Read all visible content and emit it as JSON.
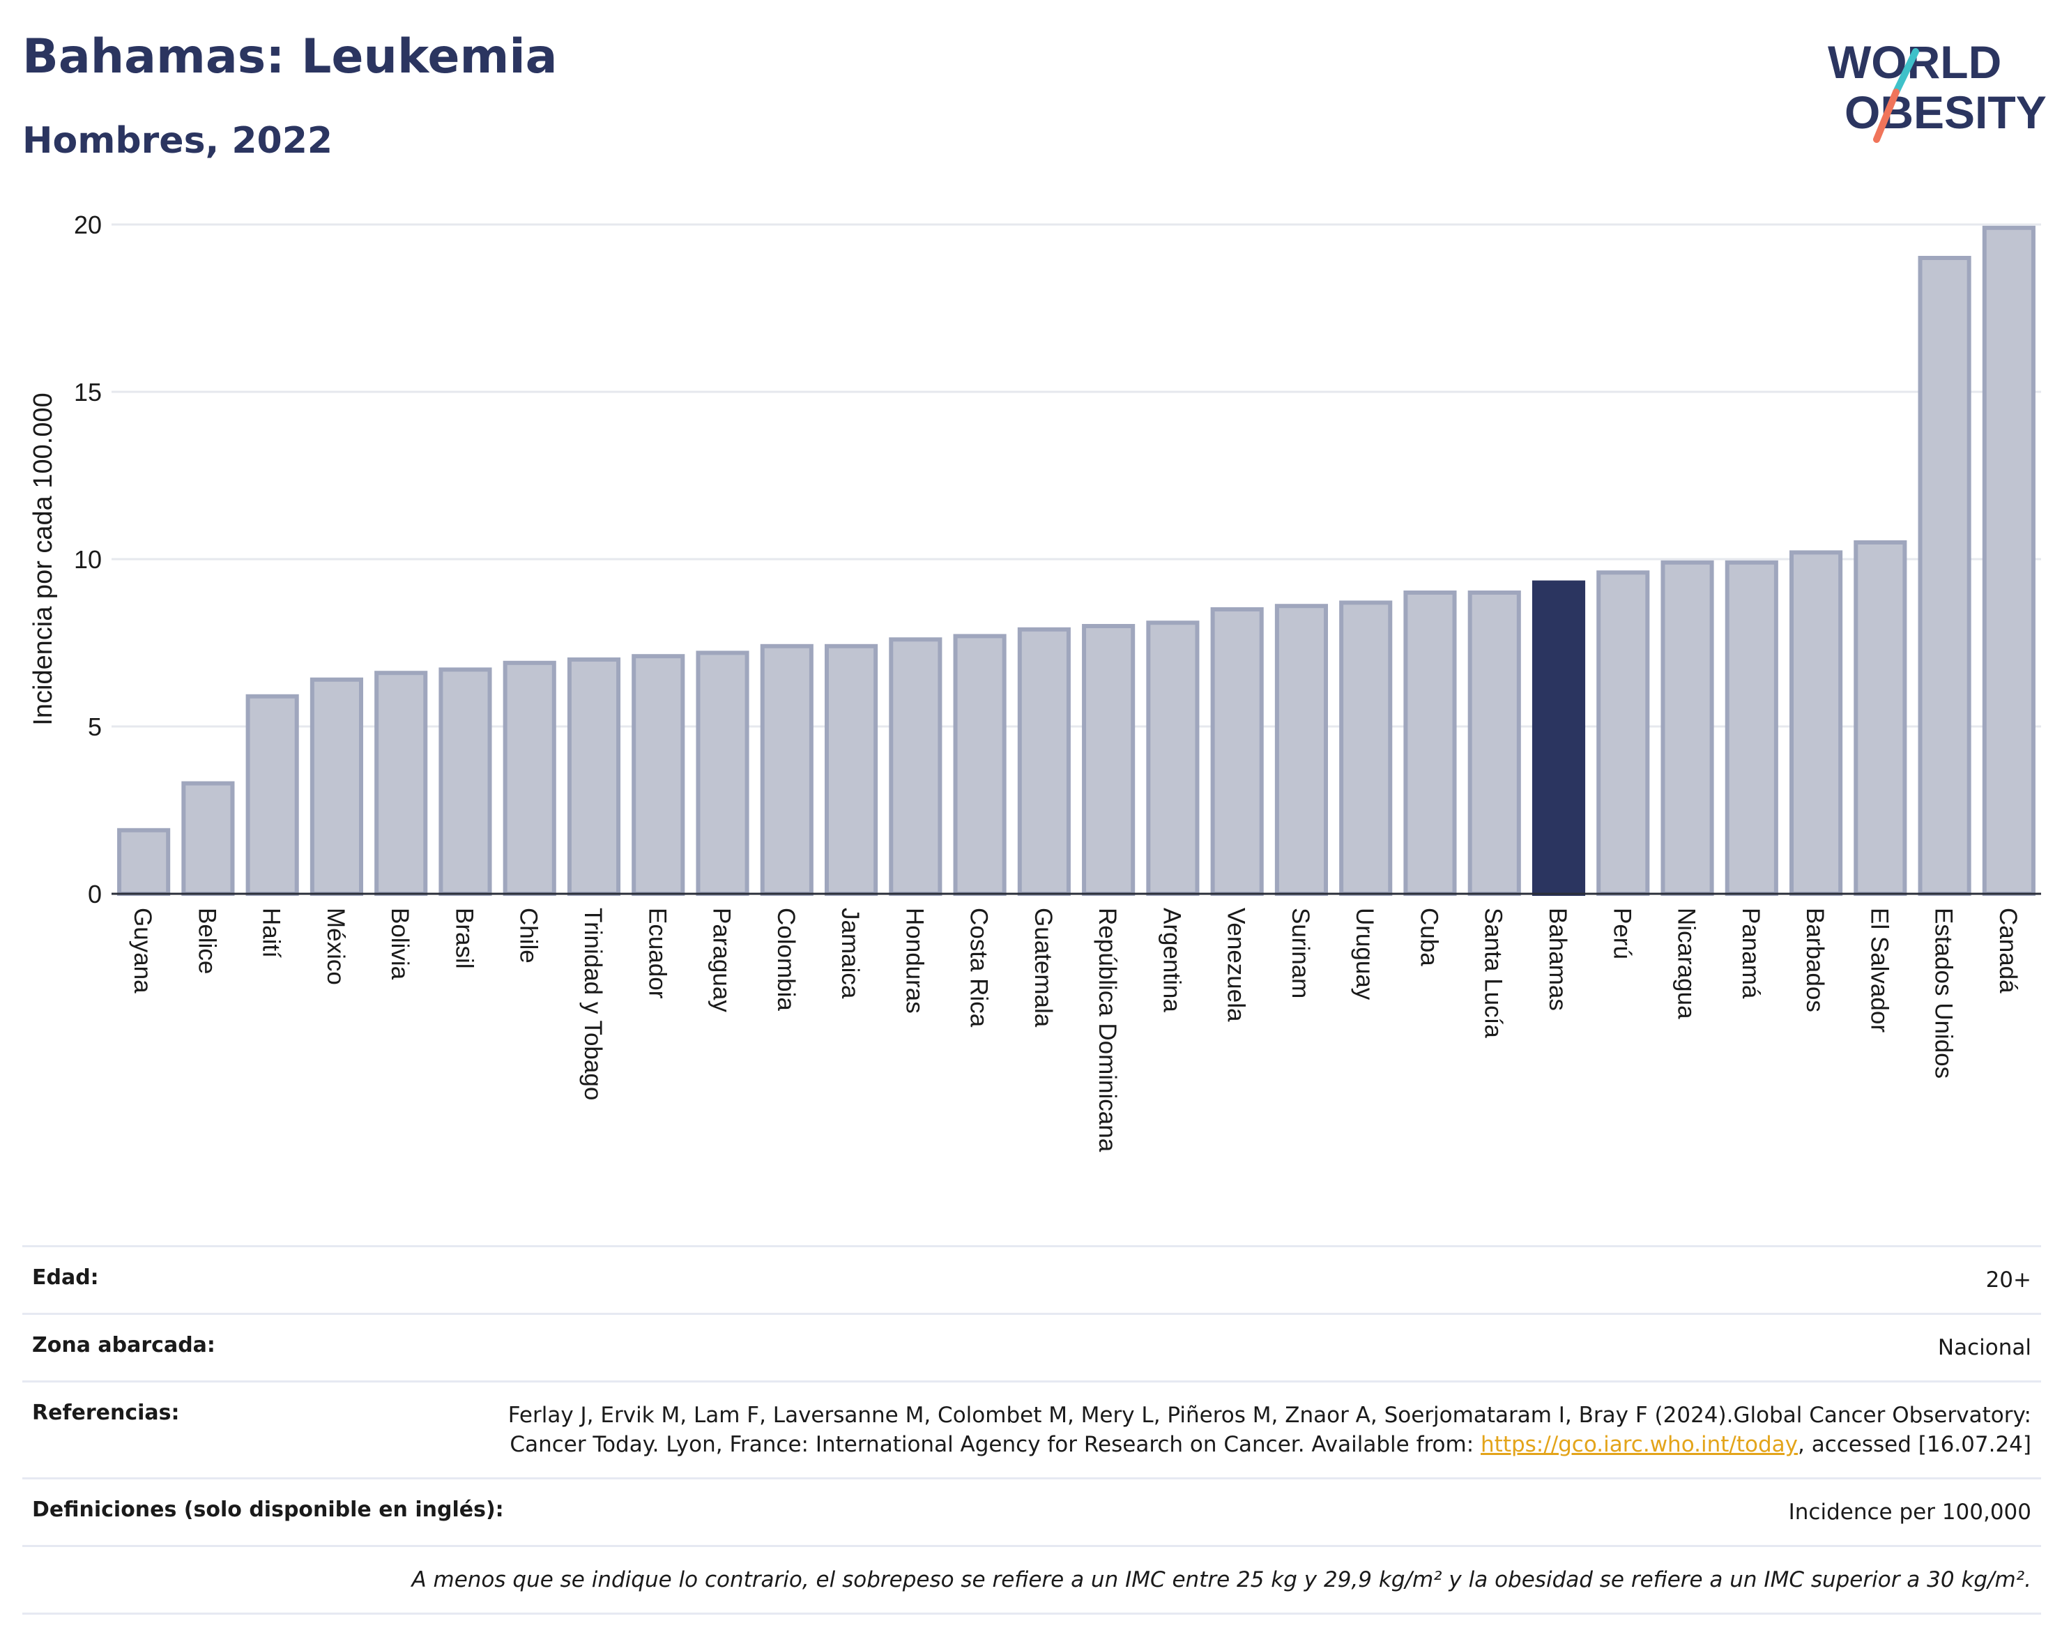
{
  "header": {
    "title": "Bahamas: Leukemia",
    "subtitle": "Hombres, 2022"
  },
  "logo": {
    "line1": "WORLD",
    "line2": "OBESITY",
    "colors": [
      "#2b3560",
      "#3fc1c9",
      "#f0745a"
    ]
  },
  "chart_data": {
    "type": "bar",
    "ylabel": "Incidencia por cada 100.000",
    "ylim": [
      0,
      20
    ],
    "yticks": [
      0,
      5,
      10,
      15,
      20
    ],
    "grid": true,
    "highlight": "Bahamas",
    "colors": {
      "bar": "#c0c4d1",
      "bar_edge": "#9fa6bd",
      "highlight": "#2b3560",
      "grid": "#e6e8ee"
    },
    "categories": [
      "Guyana",
      "Belice",
      "Haití",
      "México",
      "Bolivia",
      "Brasil",
      "Chile",
      "Trinidad y Tobago",
      "Ecuador",
      "Paraguay",
      "Colombia",
      "Jamaica",
      "Honduras",
      "Costa Rica",
      "Guatemala",
      "República Dominicana",
      "Argentina",
      "Venezuela",
      "Surinam",
      "Uruguay",
      "Cuba",
      "Santa Lucía",
      "Bahamas",
      "Perú",
      "Nicaragua",
      "Panamá",
      "Barbados",
      "El Salvador",
      "Estados Unidos",
      "Canadá"
    ],
    "values": [
      1.9,
      3.3,
      5.9,
      6.4,
      6.6,
      6.7,
      6.9,
      7.0,
      7.1,
      7.2,
      7.4,
      7.4,
      7.6,
      7.7,
      7.9,
      8.0,
      8.1,
      8.5,
      8.6,
      8.7,
      9.0,
      9.0,
      9.3,
      9.6,
      9.9,
      9.9,
      10.2,
      10.5,
      19.0,
      19.9
    ]
  },
  "info": {
    "age_label": "Edad:",
    "age_value": "20+",
    "area_label": "Zona abarcada:",
    "area_value": "Nacional",
    "refs_label": "Referencias:",
    "refs_text": "Ferlay J, Ervik M, Lam F, Laversanne M, Colombet M, Mery L, Piñeros M, Znaor A, Soerjomataram I, Bray F (2024).Global Cancer Observatory: Cancer Today. Lyon, France: International Agency for Research on Cancer. Available from: ",
    "refs_link": "https://gco.iarc.who.int/today",
    "refs_tail": ", accessed [16.07.24]",
    "defs_label": "Definiciones (solo disponible en inglés):",
    "defs_value": "Incidence per 100,000",
    "note": "A menos que se indique lo contrario, el sobrepeso se refiere a un IMC entre 25 kg y 29,9 kg/m² y la obesidad se refiere a un IMC superior a 30 kg/m²."
  }
}
